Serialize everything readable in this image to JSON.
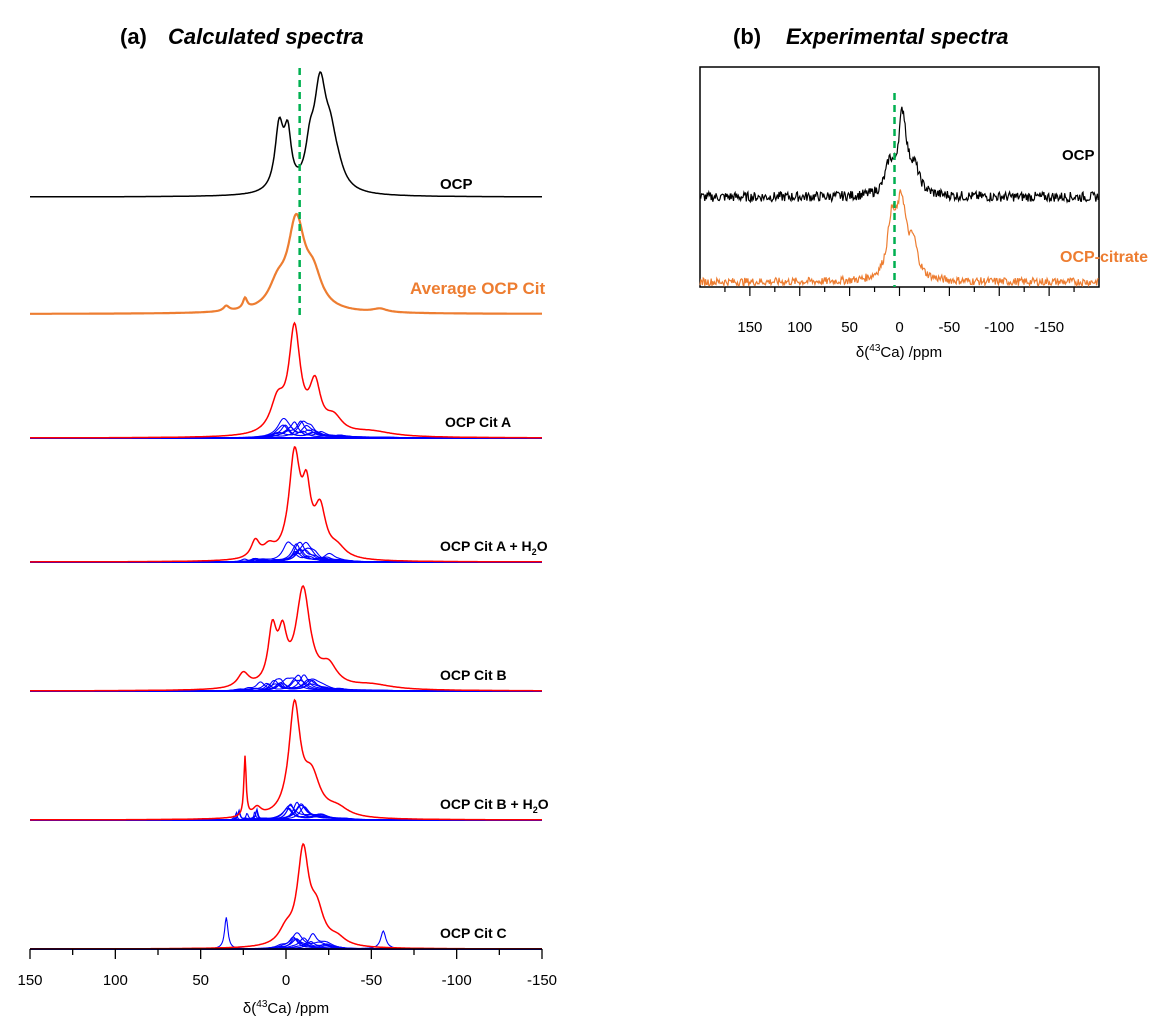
{
  "colors": {
    "black": "#000000",
    "orange": "#ED7D31",
    "red": "#FF0000",
    "blue": "#0000FF",
    "green_dash": "#00B050"
  },
  "panel_a": {
    "letter": "(a)",
    "title": "Calculated spectra",
    "xlabel_prefix": "δ(",
    "xlabel_sup": "43",
    "xlabel_suffix": "Ca) /ppm"
  },
  "panel_b": {
    "letter": "(b)",
    "title": "Experimental spectra",
    "xlabel_prefix": "δ(",
    "xlabel_sup": "43",
    "xlabel_suffix": "Ca) /ppm"
  },
  "labels": {
    "ocp": "OCP",
    "avg": "Average OCP Cit",
    "cit_a": "OCP Cit A",
    "cit_a_h2o_main": "OCP Cit A + H",
    "cit_a_h2o_sub": "2",
    "cit_a_h2o_tail": "O",
    "cit_b": "OCP Cit B",
    "cit_b_h2o_main": "OCP Cit B + H",
    "cit_b_h2o_sub": "2",
    "cit_b_h2o_tail": "O",
    "cit_c": "OCP Cit C",
    "exp_ocp": "OCP",
    "exp_citrate": "OCP-citrate"
  },
  "chart_data": [
    {
      "type": "line",
      "panel": "a",
      "title": "Calculated spectra",
      "xlabel": "δ(43Ca) /ppm",
      "xlim": [
        150,
        -150
      ],
      "xticks": [
        150,
        100,
        50,
        0,
        -50,
        -100,
        -150
      ],
      "xtick_labels": [
        "150",
        "100",
        "50",
        "0",
        "-50",
        "-100",
        "-150"
      ],
      "reference_line_ppm": -8,
      "series": [
        {
          "name": "OCP",
          "color": "#000000",
          "peaks": [
            [
              4,
              0.62,
              3
            ],
            [
              -1,
              0.5,
              2.5
            ],
            [
              -20,
              1.0,
              4.5
            ],
            [
              -26,
              0.35,
              4
            ],
            [
              -14,
              0.3,
              3
            ],
            [
              -30,
              0.15,
              5
            ]
          ],
          "height": 125
        },
        {
          "name": "Average OCP Cit",
          "color": "#ED7D31",
          "peaks": [
            [
              -6,
              1.0,
              6
            ],
            [
              -16,
              0.35,
              6
            ],
            [
              5,
              0.25,
              6
            ],
            [
              24,
              0.12,
              1.5
            ],
            [
              35,
              0.06,
              2
            ],
            [
              -55,
              0.04,
              5
            ]
          ],
          "height": 100
        },
        {
          "name": "OCP Cit A",
          "color": "#FF0000",
          "peaks": [
            [
              -5,
              1.0,
              4
            ],
            [
              -17,
              0.45,
              4
            ],
            [
              5,
              0.3,
              5
            ],
            [
              -28,
              0.15,
              6
            ],
            [
              -50,
              0.05,
              15
            ]
          ],
          "height": 115,
          "sub_color": "#0000FF",
          "sub_count": 8
        },
        {
          "name": "OCP Cit A + H2O",
          "color": "#FF0000",
          "peaks": [
            [
              -5,
              1.0,
              4
            ],
            [
              -12,
              0.55,
              3
            ],
            [
              -20,
              0.45,
              4
            ],
            [
              18,
              0.17,
              3
            ],
            [
              10,
              0.1,
              4
            ],
            [
              -30,
              0.1,
              6
            ]
          ],
          "height": 115,
          "sub_color": "#0000FF",
          "sub_count": 8
        },
        {
          "name": "OCP Cit B",
          "color": "#FF0000",
          "peaks": [
            [
              -10,
              1.0,
              5
            ],
            [
              8,
              0.55,
              3
            ],
            [
              2,
              0.45,
              3
            ],
            [
              25,
              0.15,
              4
            ],
            [
              -25,
              0.2,
              6
            ],
            [
              -50,
              0.05,
              15
            ]
          ],
          "height": 105,
          "sub_color": "#0000FF",
          "sub_count": 8
        },
        {
          "name": "OCP Cit B + H2O",
          "color": "#FF0000",
          "peaks": [
            [
              -5,
              1.0,
              4
            ],
            [
              -15,
              0.35,
              6
            ],
            [
              24,
              0.55,
              0.8
            ],
            [
              17,
              0.08,
              3
            ],
            [
              -30,
              0.08,
              8
            ]
          ],
          "height": 120,
          "sub_color": "#0000FF",
          "sub_count": 8
        },
        {
          "name": "OCP Cit C",
          "color": "#FF0000",
          "peaks": [
            [
              -10,
              1.0,
              4
            ],
            [
              -18,
              0.35,
              5
            ],
            [
              0,
              0.15,
              5
            ],
            [
              35,
              0.0,
              1
            ],
            [
              -30,
              0.08,
              6
            ]
          ],
          "height": 105,
          "sub_color": "#0000FF",
          "sub_count": 8,
          "sub_extra_peaks": [
            [
              35,
              0.3,
              1.2
            ],
            [
              -57,
              0.17,
              1.8
            ]
          ]
        }
      ]
    },
    {
      "type": "line",
      "panel": "b",
      "title": "Experimental spectra",
      "xlabel": "δ(43Ca) /ppm",
      "xlim": [
        200,
        -200
      ],
      "xticks": [
        150,
        100,
        50,
        0,
        -50,
        -100,
        -150
      ],
      "xtick_labels": [
        "150",
        "100",
        "50",
        "0",
        "-50",
        "-100",
        "-150"
      ],
      "reference_line_ppm": 5,
      "series": [
        {
          "name": "OCP",
          "color": "#000000",
          "peaks": [
            [
              -3,
              1.0,
              5
            ],
            [
              10,
              0.35,
              5
            ],
            [
              -15,
              0.3,
              6
            ]
          ],
          "height": 80,
          "noise": 5
        },
        {
          "name": "OCP-citrate",
          "color": "#ED7D31",
          "peaks": [
            [
              -2,
              1.0,
              6
            ],
            [
              8,
              0.7,
              5
            ],
            [
              -14,
              0.4,
              5
            ]
          ],
          "height": 75,
          "noise": 4
        }
      ]
    }
  ]
}
